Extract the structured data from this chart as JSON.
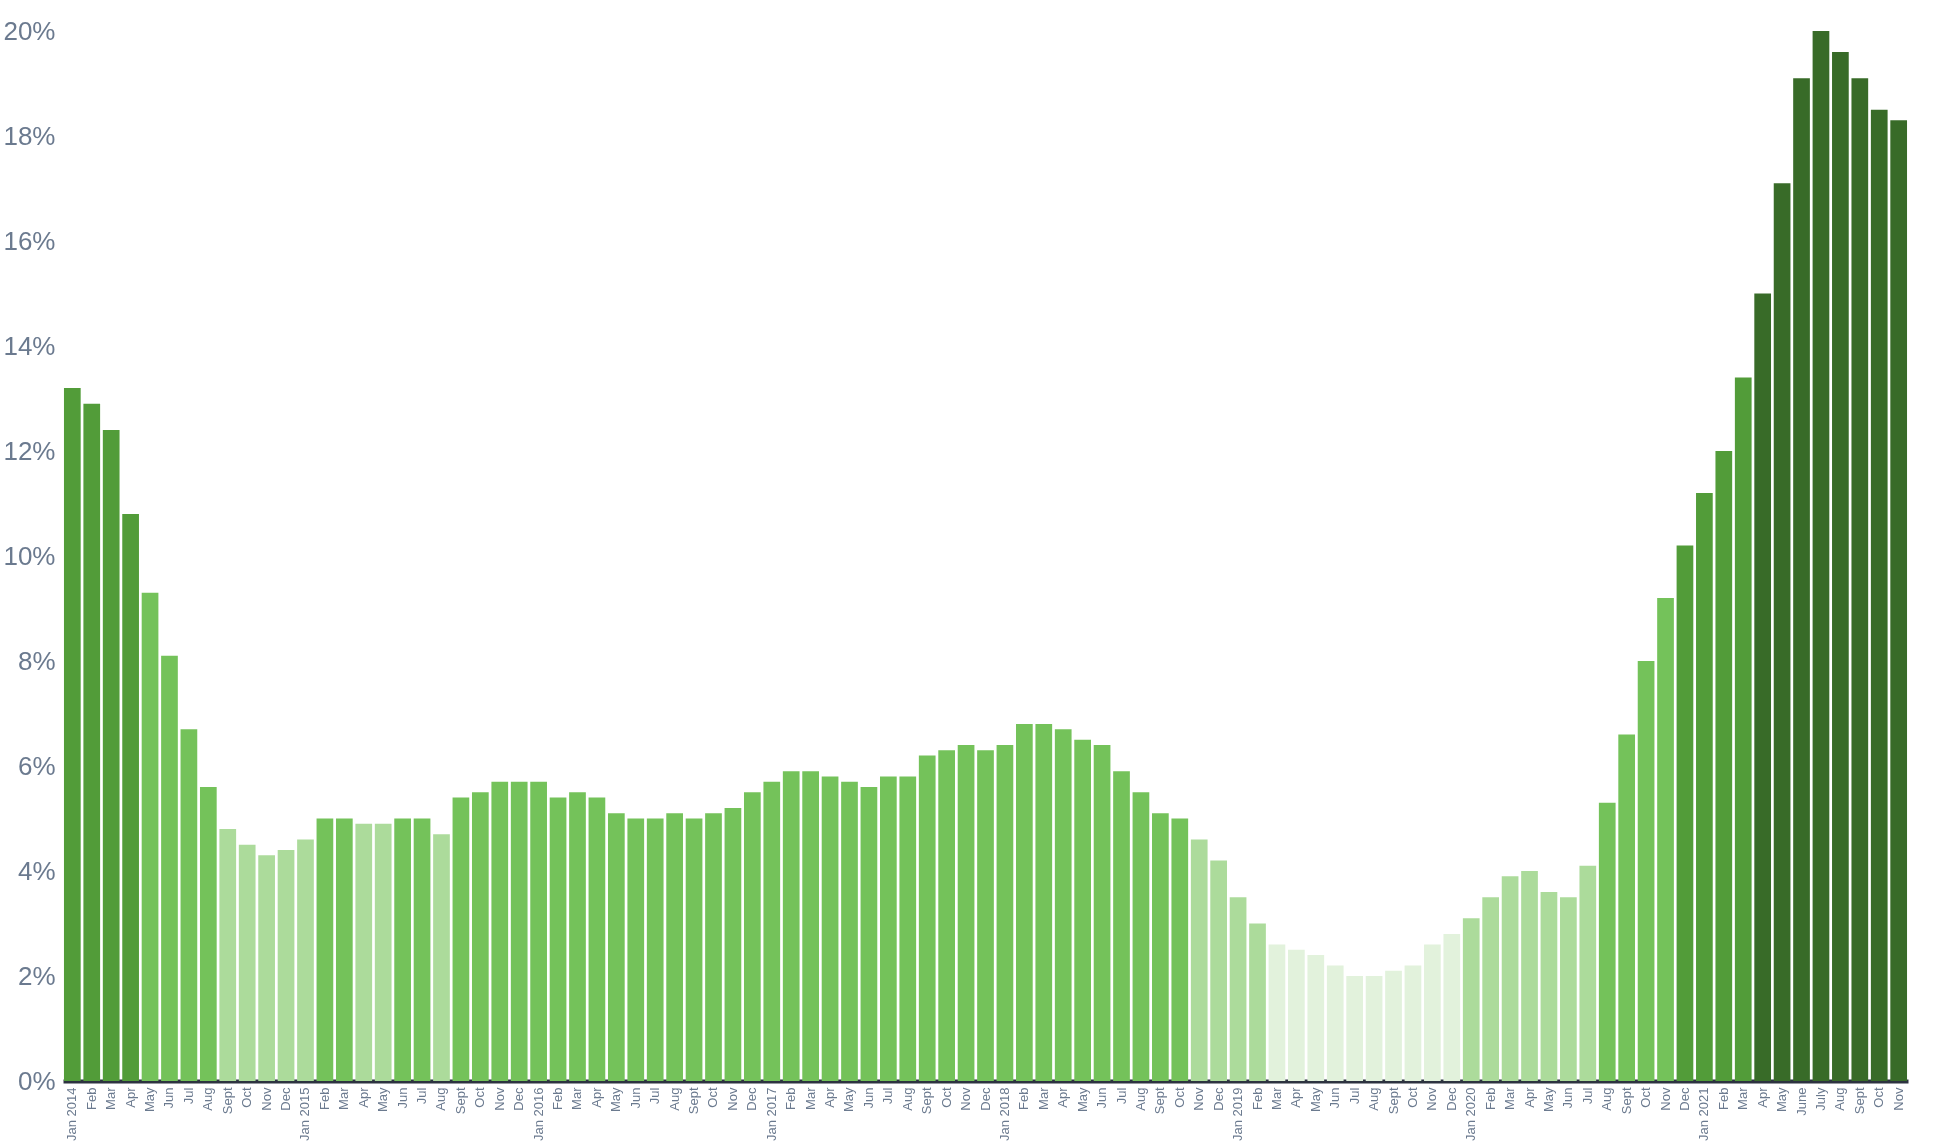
{
  "chart_data": {
    "type": "bar",
    "categories": [
      "Jan 2014",
      "Feb",
      "Mar",
      "Apr",
      "May",
      "Jun",
      "Jul",
      "Aug",
      "Sept",
      "Oct",
      "Nov",
      "Dec",
      "Jan 2015",
      "Feb",
      "Mar",
      "Apr",
      "May",
      "Jun",
      "Jul",
      "Aug",
      "Sept",
      "Oct",
      "Nov",
      "Dec",
      "Jan 2016",
      "Feb",
      "Mar",
      "Apr",
      "May",
      "Jun",
      "Jul",
      "Aug",
      "Sept",
      "Oct",
      "Nov",
      "Dec",
      "Jan 2017",
      "Feb",
      "Mar",
      "Apr",
      "May",
      "Jun",
      "Jul",
      "Aug",
      "Sept",
      "Oct",
      "Nov",
      "Dec",
      "Jan 2018",
      "Feb",
      "Mar",
      "Apr",
      "May",
      "Jun",
      "Jul",
      "Aug",
      "Sept",
      "Oct",
      "Nov",
      "Dec",
      "Jan 2019",
      "Feb",
      "Mar",
      "Apr",
      "May",
      "Jun",
      "Jul",
      "Aug",
      "Sept",
      "Oct",
      "Nov",
      "Dec",
      "Jan 2020",
      "Feb",
      "Mar",
      "Apr",
      "May",
      "Jun",
      "Jul",
      "Aug",
      "Sept",
      "Oct",
      "Nov",
      "Dec",
      "Jan 2021",
      "Feb",
      "Mar",
      "Apr",
      "May",
      "June",
      "July",
      "Aug",
      "Sept",
      "Oct",
      "Nov"
    ],
    "values": [
      13.2,
      12.9,
      12.4,
      10.8,
      9.3,
      8.1,
      6.7,
      5.6,
      4.8,
      4.5,
      4.3,
      4.4,
      4.6,
      5.0,
      5.0,
      4.9,
      4.9,
      5.0,
      5.0,
      4.7,
      5.4,
      5.5,
      5.7,
      5.7,
      5.7,
      5.4,
      5.5,
      5.4,
      5.1,
      5.0,
      5.0,
      5.1,
      5.0,
      5.1,
      5.2,
      5.5,
      5.7,
      5.9,
      5.9,
      5.8,
      5.7,
      5.6,
      5.8,
      5.8,
      6.2,
      6.3,
      6.4,
      6.3,
      6.4,
      6.8,
      6.8,
      6.7,
      6.5,
      6.4,
      5.9,
      5.5,
      5.1,
      5.0,
      4.6,
      4.2,
      3.5,
      3.0,
      2.6,
      2.5,
      2.4,
      2.2,
      2.0,
      2.0,
      2.1,
      2.2,
      2.6,
      2.8,
      3.1,
      3.5,
      3.9,
      4.0,
      3.6,
      3.5,
      4.1,
      5.3,
      6.6,
      8.0,
      9.2,
      10.2,
      11.2,
      12.0,
      13.4,
      15.0,
      17.1,
      19.1,
      20.0,
      19.6,
      19.1,
      18.5,
      18.3
    ],
    "colors": [
      "#529c39",
      "#529c39",
      "#529c39",
      "#529c39",
      "#74c25a",
      "#74c25a",
      "#74c25a",
      "#74c25a",
      "#acdb9b",
      "#acdb9b",
      "#acdb9b",
      "#acdb9b",
      "#acdb9b",
      "#74c25a",
      "#74c25a",
      "#acdb9b",
      "#acdb9b",
      "#74c25a",
      "#74c25a",
      "#acdb9b",
      "#74c25a",
      "#74c25a",
      "#74c25a",
      "#74c25a",
      "#74c25a",
      "#74c25a",
      "#74c25a",
      "#74c25a",
      "#74c25a",
      "#74c25a",
      "#74c25a",
      "#74c25a",
      "#74c25a",
      "#74c25a",
      "#74c25a",
      "#74c25a",
      "#74c25a",
      "#74c25a",
      "#74c25a",
      "#74c25a",
      "#74c25a",
      "#74c25a",
      "#74c25a",
      "#74c25a",
      "#74c25a",
      "#74c25a",
      "#74c25a",
      "#74c25a",
      "#74c25a",
      "#74c25a",
      "#74c25a",
      "#74c25a",
      "#74c25a",
      "#74c25a",
      "#74c25a",
      "#74c25a",
      "#74c25a",
      "#74c25a",
      "#acdb9b",
      "#acdb9b",
      "#acdb9b",
      "#acdb9b",
      "#e2f2dc",
      "#e2f2dc",
      "#e2f2dc",
      "#e2f2dc",
      "#e2f2dc",
      "#e2f2dc",
      "#e2f2dc",
      "#e2f2dc",
      "#e2f2dc",
      "#e2f2dc",
      "#acdb9b",
      "#acdb9b",
      "#acdb9b",
      "#acdb9b",
      "#acdb9b",
      "#acdb9b",
      "#acdb9b",
      "#74c25a",
      "#74c25a",
      "#74c25a",
      "#74c25a",
      "#529c39",
      "#529c39",
      "#529c39",
      "#529c39",
      "#386b28",
      "#386b28",
      "#386b28",
      "#386b28",
      "#386b28",
      "#386b28",
      "#386b28",
      "#386b28"
    ],
    "ylim": [
      0,
      20
    ],
    "yticks": [
      {
        "value": 0,
        "label": "0%"
      },
      {
        "value": 2,
        "label": "2%"
      },
      {
        "value": 4,
        "label": "4%"
      },
      {
        "value": 6,
        "label": "6%"
      },
      {
        "value": 8,
        "label": "8%"
      },
      {
        "value": 10,
        "label": "10%"
      },
      {
        "value": 12,
        "label": "12%"
      },
      {
        "value": 14,
        "label": "14%"
      },
      {
        "value": 16,
        "label": "16%"
      },
      {
        "value": 18,
        "label": "18%"
      },
      {
        "value": 20,
        "label": "20%"
      }
    ]
  }
}
